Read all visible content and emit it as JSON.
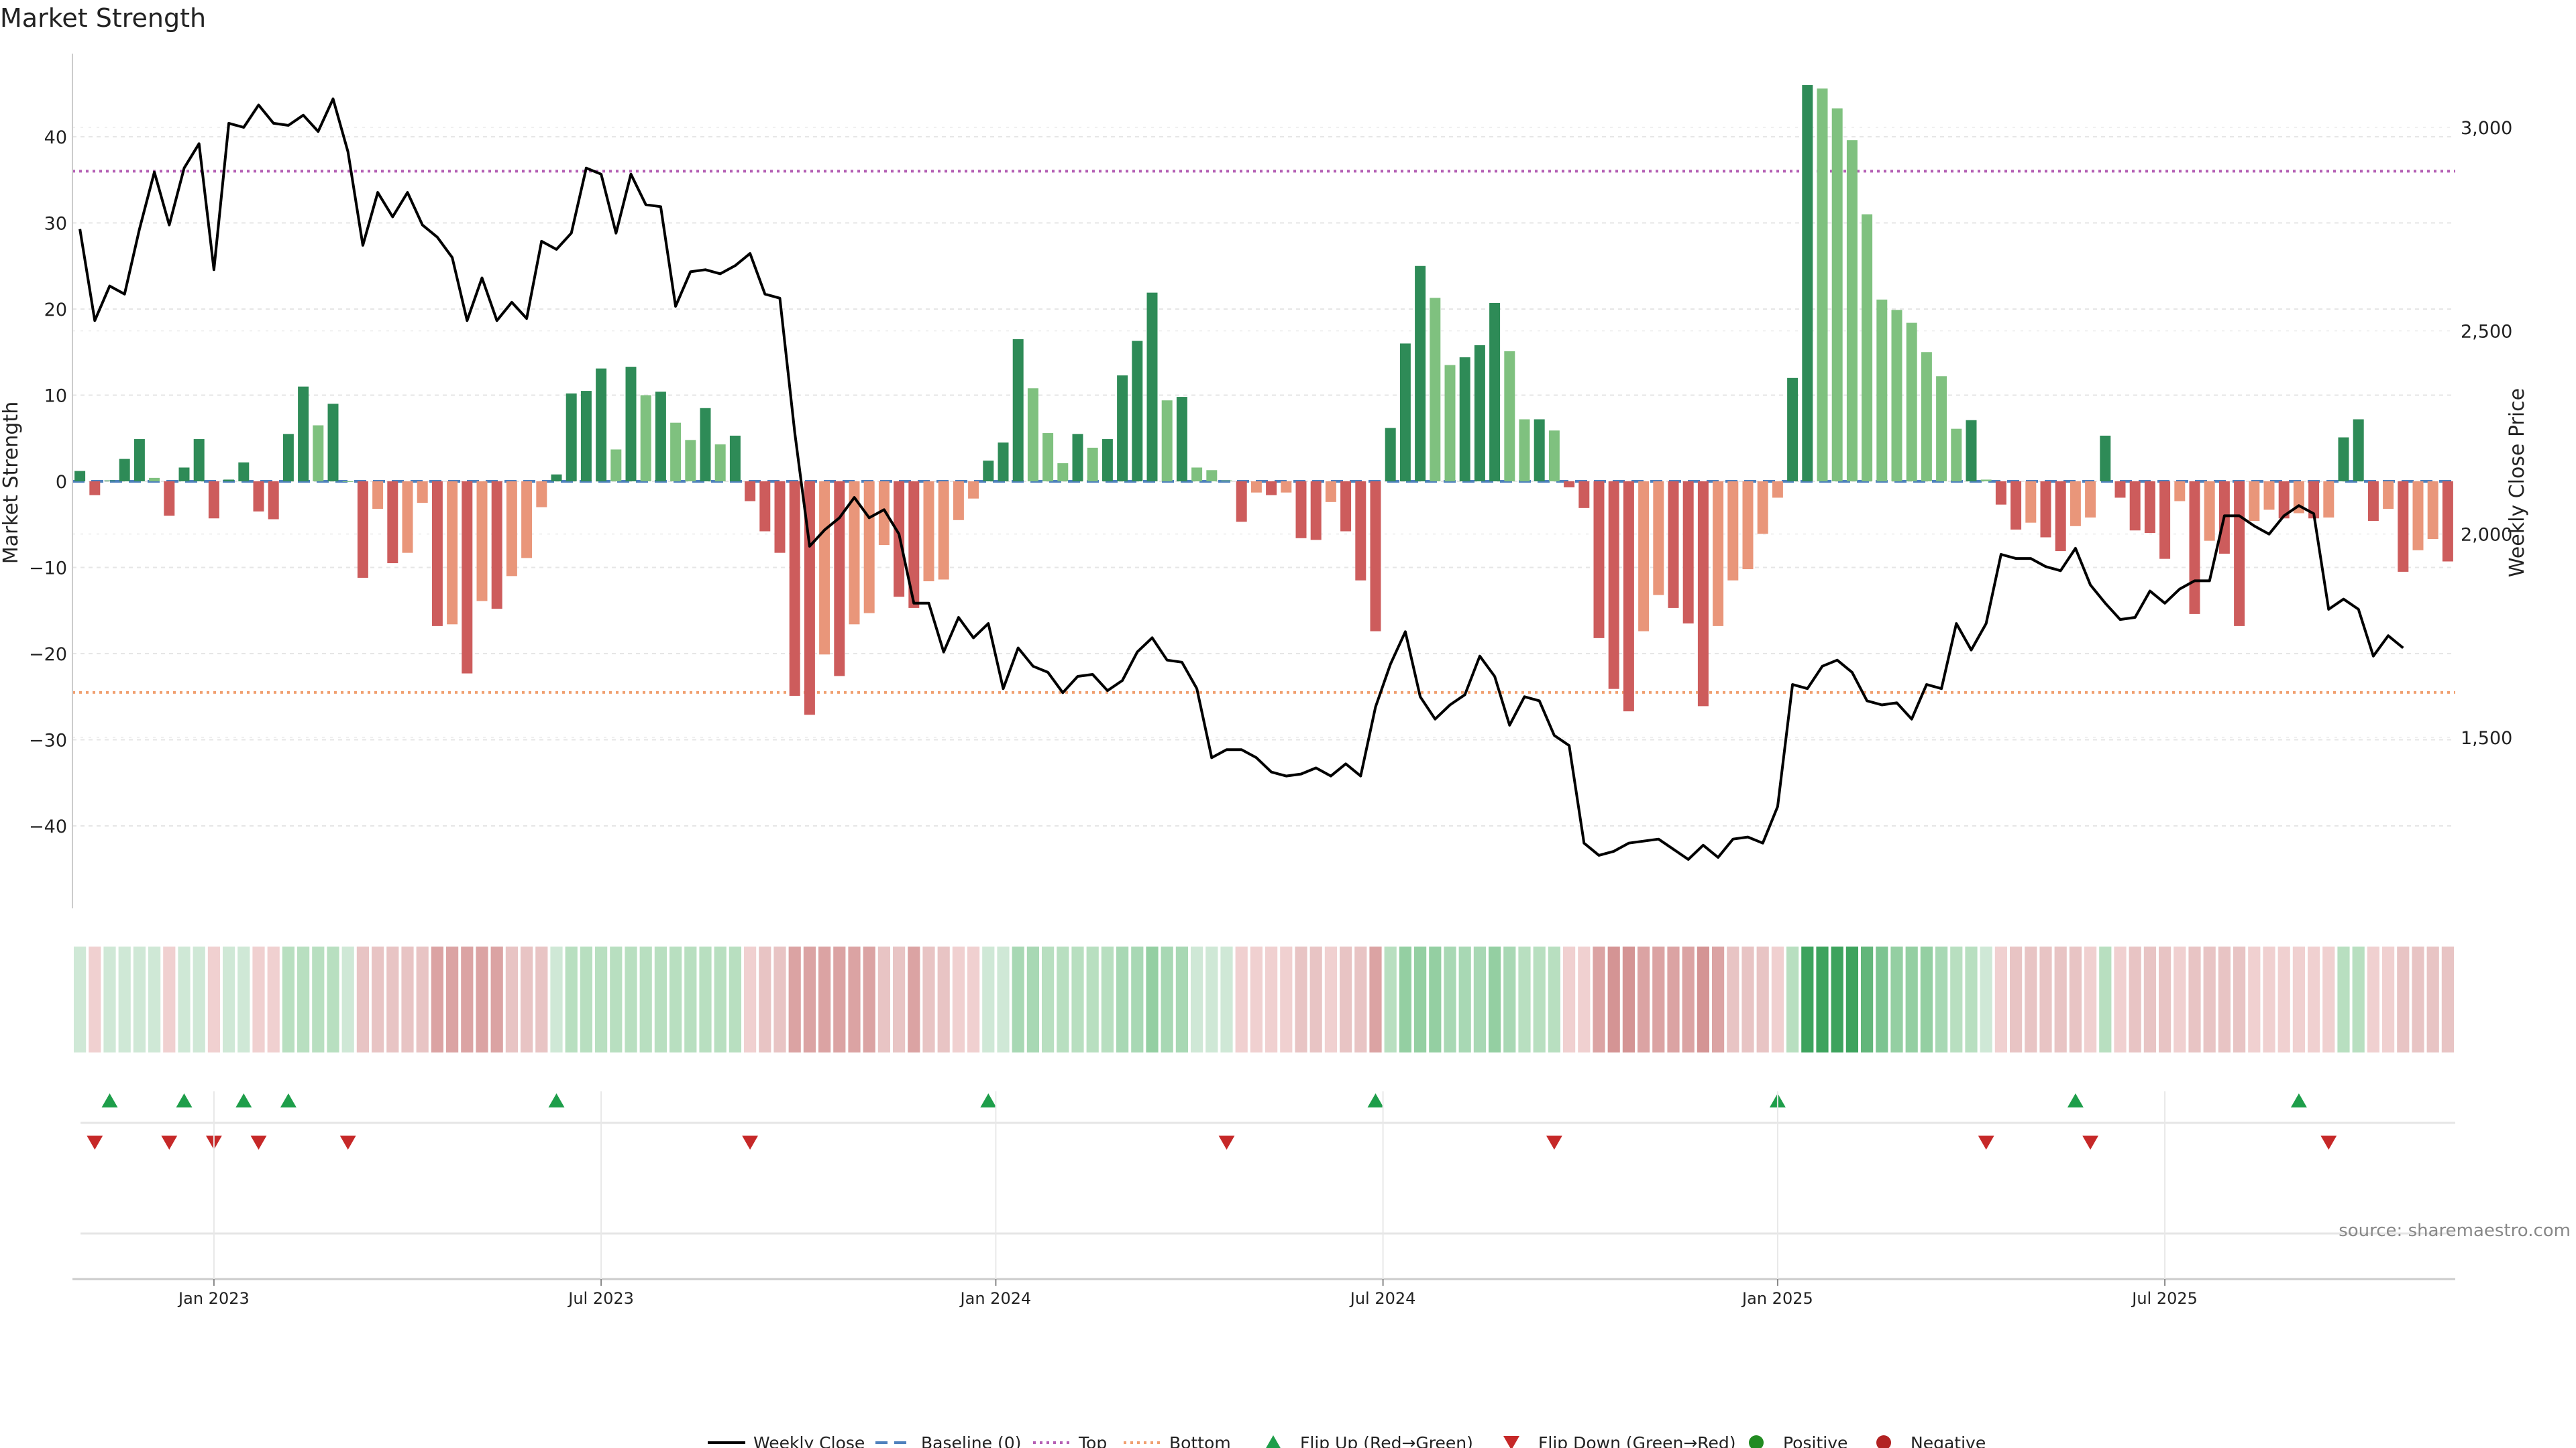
{
  "chart_data": {
    "type": "bar+line",
    "title": "Market Strength",
    "ylabel_left": "Market Strength",
    "ylabel_right": "Weekly Close Price",
    "ylim_left": [
      -49,
      50
    ],
    "yticks_left": [
      40,
      30,
      20,
      10,
      0,
      -10,
      -20,
      -30,
      -40
    ],
    "ylim_right": [
      1150,
      3180
    ],
    "yticks_right": [
      3000,
      2500,
      2000,
      1500
    ],
    "top_threshold": 36,
    "bottom_threshold": -24.5,
    "x_ticks": [
      {
        "week": 9,
        "label": "Jan 2023"
      },
      {
        "week": 35,
        "label": "Jul 2023"
      },
      {
        "week": 61.5,
        "label": "Jan 2024"
      },
      {
        "week": 87.5,
        "label": "Jul 2024"
      },
      {
        "week": 114,
        "label": "Jan 2025"
      },
      {
        "week": 140,
        "label": "Jul 2025"
      }
    ],
    "strength": [
      1.2,
      -1.6,
      0.1,
      2.6,
      4.9,
      0.4,
      -4,
      1.6,
      4.9,
      -4.3,
      0.2,
      2.2,
      -3.5,
      -4.4,
      5.5,
      11,
      6.5,
      9,
      0,
      -11.2,
      -3.2,
      -9.5,
      -8.3,
      -2.5,
      -16.8,
      -16.6,
      -22.3,
      -13.9,
      -14.8,
      -11,
      -8.9,
      -3,
      0.8,
      10.2,
      10.5,
      13.1,
      3.7,
      13.3,
      10,
      10.4,
      6.8,
      4.8,
      8.5,
      4.3,
      5.3,
      -2.3,
      -5.8,
      -8.3,
      -24.9,
      -27.1,
      -20.1,
      -22.6,
      -16.6,
      -15.3,
      -7.4,
      -13.4,
      -14.7,
      -11.6,
      -11.4,
      -4.5,
      -2,
      2.4,
      4.5,
      16.5,
      10.8,
      5.6,
      2.1,
      5.5,
      3.9,
      4.9,
      12.3,
      16.3,
      21.9,
      9.4,
      9.8,
      1.6,
      1.3,
      0.1,
      -4.7,
      -1.3,
      -1.6,
      -1.3,
      -6.6,
      -6.8,
      -2.4,
      -5.8,
      -11.5,
      -17.4,
      6.2,
      16,
      25,
      21.3,
      13.5,
      14.4,
      15.8,
      20.7,
      15.1,
      7.2,
      7.2,
      5.9,
      -0.7,
      -3.1,
      -18.2,
      -24.1,
      -26.7,
      -17.4,
      -13.2,
      -14.7,
      -16.5,
      -26.1,
      -16.8,
      -11.5,
      -10.2,
      -6.1,
      -1.9,
      12,
      46,
      45.6,
      43.3,
      39.6,
      31,
      21.1,
      19.9,
      18.4,
      15,
      12.2,
      6.1,
      7.1,
      0.2,
      -2.7,
      -5.6,
      -4.8,
      -6.5,
      -8.1,
      -5.2,
      -4.2,
      5.3,
      -1.9,
      -5.7,
      -6,
      -9,
      -2.3,
      -15.4,
      -6.9,
      -8.4,
      -16.8,
      -4.6,
      -3.3,
      -4.3,
      -3.7,
      -4.3,
      -4.2,
      5.1,
      7.2,
      -4.6,
      -3.2,
      -10.5,
      -8,
      -6.7,
      -9.3
    ],
    "weekly_close": [
      2750,
      2525,
      2610,
      2590,
      2750,
      2890,
      2760,
      2900,
      2960,
      2650,
      3010,
      3000,
      3055,
      3010,
      3005,
      3030,
      2990,
      3070,
      2940,
      2710,
      2840,
      2780,
      2840,
      2760,
      2730,
      2680,
      2525,
      2630,
      2525,
      2570,
      2530,
      2720,
      2700,
      2740,
      2900,
      2885,
      2740,
      2885,
      2810,
      2805,
      2560,
      2645,
      2650,
      2640,
      2660,
      2690,
      2590,
      2580,
      2250,
      1970,
      2010,
      2040,
      2090,
      2040,
      2060,
      2000,
      1830,
      1830,
      1710,
      1795,
      1745,
      1780,
      1620,
      1720,
      1675,
      1660,
      1610,
      1650,
      1655,
      1615,
      1640,
      1710,
      1745,
      1690,
      1685,
      1620,
      1450,
      1470,
      1470,
      1450,
      1415,
      1405,
      1410,
      1425,
      1405,
      1435,
      1405,
      1575,
      1680,
      1760,
      1600,
      1545,
      1580,
      1605,
      1700,
      1650,
      1530,
      1600,
      1590,
      1505,
      1480,
      1240,
      1210,
      1220,
      1240,
      1245,
      1250,
      1225,
      1200,
      1235,
      1205,
      1250,
      1255,
      1240,
      1330,
      1630,
      1620,
      1675,
      1690,
      1660,
      1590,
      1580,
      1585,
      1545,
      1630,
      1620,
      1780,
      1715,
      1780,
      1950,
      1940,
      1940,
      1920,
      1910,
      1965,
      1875,
      1830,
      1790,
      1795,
      1860,
      1830,
      1865,
      1885,
      1885,
      2045,
      2045,
      2020,
      2000,
      2045,
      2070,
      2050,
      1815,
      1840,
      1815,
      1700,
      1750,
      1720
    ],
    "heatmap_colors": [
      "#cfe8d6",
      "#f0d0d0",
      "#cfe8d6",
      "#cfe8d6",
      "#cfe8d6",
      "#cfe8d6",
      "#f0d0d0",
      "#cfe8d6",
      "#cfe8d6",
      "#f0d0d0",
      "#cfe8d6",
      "#cfe8d6",
      "#f0d0d0",
      "#f0d0d0",
      "#b8dfc0",
      "#b8dfc0",
      "#b8dfc0",
      "#b8dfc0",
      "#cfe8d6",
      "#e8c4c4",
      "#e8c4c4",
      "#e8c4c4",
      "#e8c4c4",
      "#e8c4c4",
      "#dba3a3",
      "#dba3a3",
      "#dba3a3",
      "#dba3a3",
      "#dba3a3",
      "#e8c4c4",
      "#e8c4c4",
      "#e8c4c4",
      "#cfe8d6",
      "#b8dfc0",
      "#b8dfc0",
      "#b8dfc0",
      "#b8dfc0",
      "#b8dfc0",
      "#b8dfc0",
      "#b8dfc0",
      "#b8dfc0",
      "#b8dfc0",
      "#b8dfc0",
      "#b8dfc0",
      "#b8dfc0",
      "#f0d0d0",
      "#e8c4c4",
      "#e8c4c4",
      "#dba3a3",
      "#dba3a3",
      "#dba3a3",
      "#dba3a3",
      "#dba3a3",
      "#dba3a3",
      "#e8c4c4",
      "#e8c4c4",
      "#dba3a3",
      "#e8c4c4",
      "#e8c4c4",
      "#f0d0d0",
      "#f0d0d0",
      "#cfe8d6",
      "#cfe8d6",
      "#a8d8b4",
      "#a8d8b4",
      "#b8dfc0",
      "#b8dfc0",
      "#b8dfc0",
      "#b8dfc0",
      "#b8dfc0",
      "#a8d8b4",
      "#a8d8b4",
      "#94cfa2",
      "#a8d8b4",
      "#a8d8b4",
      "#cfe8d6",
      "#cfe8d6",
      "#cfe8d6",
      "#f0d0d0",
      "#f0d0d0",
      "#f0d0d0",
      "#f0d0d0",
      "#e8c4c4",
      "#e8c4c4",
      "#f0d0d0",
      "#e8c4c4",
      "#e8c4c4",
      "#dba3a3",
      "#b8dfc0",
      "#94cfa2",
      "#94cfa2",
      "#94cfa2",
      "#a8d8b4",
      "#a8d8b4",
      "#a8d8b4",
      "#94cfa2",
      "#a8d8b4",
      "#b8dfc0",
      "#b8dfc0",
      "#b8dfc0",
      "#f0d0d0",
      "#f0d0d0",
      "#dba3a3",
      "#d49494",
      "#d49494",
      "#dba3a3",
      "#dba3a3",
      "#dba3a3",
      "#dba3a3",
      "#d49494",
      "#dba3a3",
      "#e8c4c4",
      "#e8c4c4",
      "#e8c4c4",
      "#f0d0d0",
      "#b8dfc0",
      "#3da35d",
      "#3da35d",
      "#3da35d",
      "#3da35d",
      "#62b67a",
      "#7cc491",
      "#94cfa2",
      "#94cfa2",
      "#94cfa2",
      "#a8d8b4",
      "#b8dfc0",
      "#b8dfc0",
      "#cfe8d6",
      "#f0d0d0",
      "#e8c4c4",
      "#e8c4c4",
      "#e8c4c4",
      "#e8c4c4",
      "#e8c4c4",
      "#f0d0d0",
      "#b8dfc0",
      "#f0d0d0",
      "#e8c4c4",
      "#e8c4c4",
      "#e8c4c4",
      "#f0d0d0",
      "#e8c4c4",
      "#e8c4c4",
      "#e8c4c4",
      "#e8c4c4",
      "#f0d0d0",
      "#f0d0d0",
      "#f0d0d0",
      "#f0d0d0",
      "#f0d0d0",
      "#f0d0d0",
      "#b8dfc0",
      "#b8dfc0",
      "#f0d0d0",
      "#f0d0d0",
      "#e8c4c4",
      "#e8c4c4",
      "#e8c4c4",
      "#e8c4c4"
    ],
    "flip_up_weeks": [
      2,
      7,
      11,
      14,
      32,
      61,
      87,
      114,
      134,
      149
    ],
    "flip_down_weeks": [
      1,
      6,
      9,
      12,
      18,
      45,
      77,
      99,
      128,
      135,
      151
    ],
    "source": "source: sharemaestro.com",
    "legend": [
      {
        "key": "weekly_close",
        "label": "Weekly Close"
      },
      {
        "key": "baseline",
        "label": "Baseline (0)"
      },
      {
        "key": "top",
        "label": "Top"
      },
      {
        "key": "bottom",
        "label": "Bottom"
      },
      {
        "key": "flip_up",
        "label": "Flip Up (Red→Green)"
      },
      {
        "key": "flip_down",
        "label": "Flip Down (Green→Red)"
      },
      {
        "key": "positive",
        "label": "Positive"
      },
      {
        "key": "negative",
        "label": "Negative"
      }
    ],
    "colors": {
      "pos_strong": "#2e8b57",
      "pos_weak": "#7fc17f",
      "neg_strong": "#cd5c5c",
      "neg_weak": "#e9967a",
      "price_line": "#000000",
      "baseline": "#4f81bd",
      "top_line": "#b45fb4",
      "bottom_line": "#f0a070",
      "flip_up": "#1e9e4a",
      "flip_down": "#c62828",
      "positive_dot": "#228b22",
      "negative_dot": "#b22222",
      "grid": "#e6e6e6",
      "axis": "#cccccc",
      "text": "#222222",
      "source": "#888888"
    }
  }
}
